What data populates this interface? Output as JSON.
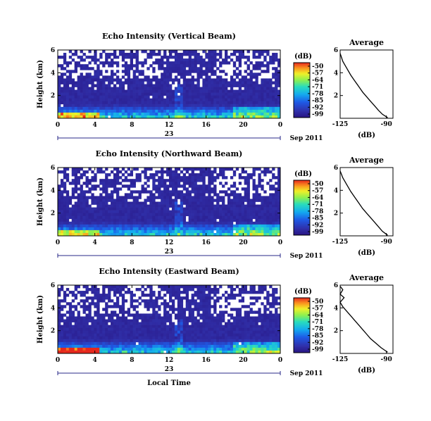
{
  "chart_data": [
    {
      "type": "heatmap",
      "title": "Echo Intensity (Vertical Beam)",
      "ylabel": "Height (km)",
      "xticks": [
        "0",
        "4",
        "8",
        "12",
        "16",
        "20",
        "0"
      ],
      "yticks": [
        "2",
        "4",
        "6"
      ],
      "xlim": [
        0,
        24
      ],
      "ylim": [
        0,
        6
      ],
      "date_day": "23",
      "date_month": "Sep 2011",
      "colorbar": {
        "unit": "(dB)",
        "ticks": [
          "-50",
          "-57",
          "-64",
          "-71",
          "-78",
          "-85",
          "-92",
          "-99"
        ],
        "range": [
          -99,
          -50
        ]
      },
      "profile": {
        "title": "Average",
        "xlabel": "(dB)",
        "xticks": [
          "-125",
          "-90"
        ],
        "yticks": [
          "2",
          "4",
          "6"
        ],
        "xlim": [
          -125,
          -85
        ],
        "ylim": [
          0,
          6
        ],
        "points": [
          [
            -125,
            5.7
          ],
          [
            -123,
            5.0
          ],
          [
            -120,
            4.4
          ],
          [
            -117,
            3.8
          ],
          [
            -114,
            3.3
          ],
          [
            -111,
            2.8
          ],
          [
            -108,
            2.3
          ],
          [
            -105,
            1.9
          ],
          [
            -102,
            1.5
          ],
          [
            -99,
            1.1
          ],
          [
            -96,
            0.7
          ],
          [
            -93,
            0.35
          ],
          [
            -89,
            0.05
          ]
        ]
      }
    },
    {
      "type": "heatmap",
      "title": "Echo Intensity (Northward Beam)",
      "ylabel": "Height (km)",
      "xticks": [
        "0",
        "4",
        "8",
        "12",
        "16",
        "20",
        "0"
      ],
      "yticks": [
        "2",
        "4",
        "6"
      ],
      "xlim": [
        0,
        24
      ],
      "ylim": [
        0,
        6
      ],
      "date_day": "23",
      "date_month": "Sep 2011",
      "colorbar": {
        "unit": "(dB)",
        "ticks": [
          "-50",
          "-57",
          "-64",
          "-71",
          "-78",
          "-85",
          "-92",
          "-99"
        ],
        "range": [
          -99,
          -50
        ]
      },
      "profile": {
        "title": "Average",
        "xlabel": "(dB)",
        "xticks": [
          "-125",
          "-90"
        ],
        "yticks": [
          "2",
          "4",
          "6"
        ],
        "xlim": [
          -125,
          -85
        ],
        "ylim": [
          0,
          6
        ],
        "points": [
          [
            -125,
            5.7
          ],
          [
            -123,
            5.1
          ],
          [
            -120,
            4.5
          ],
          [
            -117,
            3.9
          ],
          [
            -114,
            3.4
          ],
          [
            -111,
            2.9
          ],
          [
            -108,
            2.4
          ],
          [
            -105,
            2.0
          ],
          [
            -102,
            1.6
          ],
          [
            -99,
            1.2
          ],
          [
            -96,
            0.8
          ],
          [
            -93,
            0.4
          ],
          [
            -89,
            0.05
          ]
        ]
      }
    },
    {
      "type": "heatmap",
      "title": "Echo Intensity (Eastward Beam)",
      "ylabel": "Height (km)",
      "xticks": [
        "0",
        "4",
        "8",
        "12",
        "16",
        "20",
        "0"
      ],
      "yticks": [
        "2",
        "4",
        "6"
      ],
      "xlim": [
        0,
        24
      ],
      "ylim": [
        0,
        6
      ],
      "date_day": "23",
      "date_month": "Sep 2011",
      "xlabel": "Local Time",
      "colorbar": {
        "unit": "(dB)",
        "ticks": [
          "-50",
          "-57",
          "-64",
          "-71",
          "-78",
          "-85",
          "-92",
          "-99"
        ],
        "range": [
          -99,
          -50
        ]
      },
      "profile": {
        "title": "Average",
        "xlabel": "(dB)",
        "xticks": [
          "-125",
          "-90"
        ],
        "yticks": [
          "2",
          "4",
          "6"
        ],
        "xlim": [
          -125,
          -85
        ],
        "ylim": [
          0,
          6
        ],
        "points": [
          [
            -125,
            5.9
          ],
          [
            -123,
            5.6
          ],
          [
            -125,
            5.2
          ],
          [
            -122,
            4.9
          ],
          [
            -125,
            4.5
          ],
          [
            -123,
            4.1
          ],
          [
            -120,
            3.7
          ],
          [
            -117,
            3.3
          ],
          [
            -114,
            2.9
          ],
          [
            -111,
            2.5
          ],
          [
            -108,
            2.1
          ],
          [
            -105,
            1.7
          ],
          [
            -102,
            1.3
          ],
          [
            -98,
            0.9
          ],
          [
            -94,
            0.5
          ],
          [
            -89,
            0.1
          ]
        ]
      }
    }
  ]
}
